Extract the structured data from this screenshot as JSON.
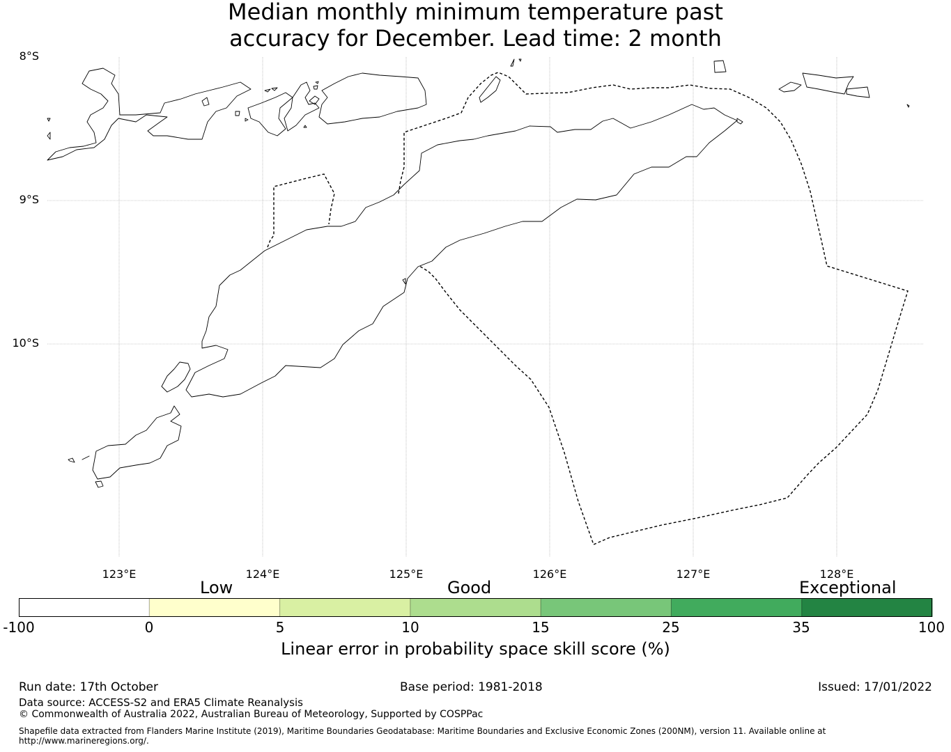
{
  "title": {
    "line1": "Median monthly minimum temperature past",
    "line2": "accuracy for December. Lead time: 2 month"
  },
  "map": {
    "lat_labels": [
      "8°S",
      "9°S",
      "10°S"
    ],
    "lon_labels": [
      "123°E",
      "124°E",
      "125°E",
      "126°E",
      "127°E",
      "128°E"
    ],
    "gridline_color": "#999999",
    "coast_color": "#000000",
    "eez_style": "dashed",
    "fill": "none"
  },
  "colorbar": {
    "band_labels": {
      "low": "Low",
      "good": "Good",
      "exceptional": "Exceptional"
    },
    "ticks": [
      "-100",
      "0",
      "5",
      "10",
      "15",
      "25",
      "35",
      "100"
    ],
    "colors": [
      "#ffffff",
      "#ffffcc",
      "#d9f0a3",
      "#addd8e",
      "#78c679",
      "#41ab5d",
      "#238443"
    ],
    "label": "Linear error in probability space skill score (%)"
  },
  "footer": {
    "run_date": "Run date: 17th October",
    "base_period": "Base period: 1981-2018",
    "issued": "Issued: 17/01/2022",
    "data_source": "Data source: ACCESS-S2 and ERA5 Climate Reanalysis",
    "copyright": "© Commonwealth of Australia 2022, Australian Bureau of Meteorology, Supported by COSPPac",
    "shapefile_line1": "Shapefile data extracted from Flanders Marine Institute (2019), Maritime Boundaries Geodatabase: Maritime Boundaries and Exclusive Economic Zones (200NM), version 11. Available online at",
    "shapefile_line2": "http://www.marineregions.org/."
  }
}
